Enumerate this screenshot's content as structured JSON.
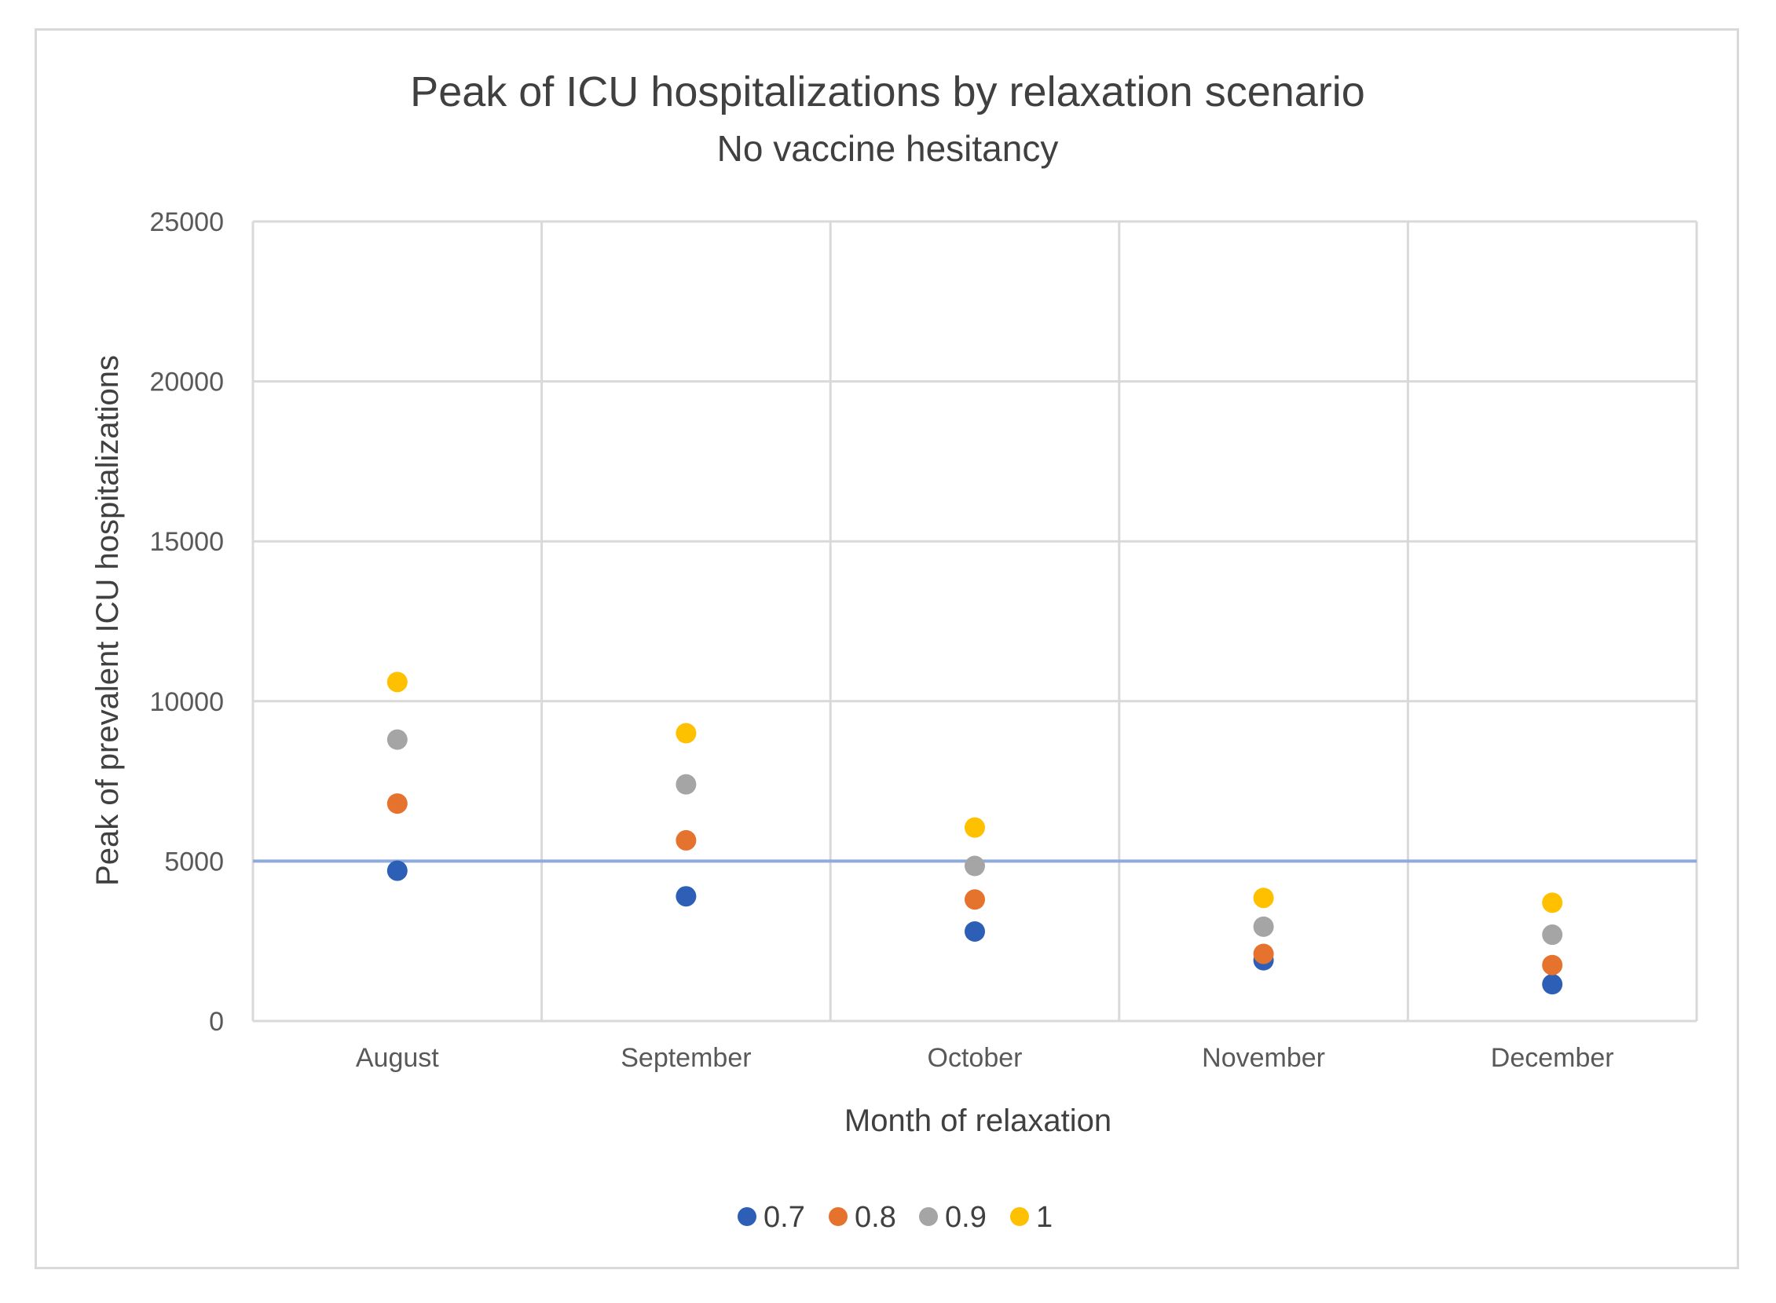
{
  "chart_data": {
    "type": "scatter",
    "title": "Peak of ICU hospitalizations by relaxation scenario",
    "subtitle": "No vaccine hesitancy",
    "xlabel": "Month of relaxation",
    "ylabel": "Peak of prevalent ICU hospitalizations",
    "categories": [
      "August",
      "September",
      "October",
      "November",
      "December"
    ],
    "ylim": [
      0,
      25000
    ],
    "yticks": [
      "0",
      "5000",
      "10000",
      "15000",
      "20000",
      "25000"
    ],
    "grid": true,
    "legend_position": "bottom",
    "reference_line": {
      "y": 5000,
      "color": "#8faadc"
    },
    "series": [
      {
        "name": "0.7",
        "color": "#2e5fb7",
        "values": [
          4700,
          3900,
          2800,
          1900,
          1150
        ]
      },
      {
        "name": "0.8",
        "color": "#e5732d",
        "values": [
          6800,
          5650,
          3800,
          2100,
          1750
        ]
      },
      {
        "name": "0.9",
        "color": "#a5a5a5",
        "values": [
          8800,
          7400,
          4850,
          2950,
          2700
        ]
      },
      {
        "name": "1",
        "color": "#ffc000",
        "values": [
          10600,
          9000,
          6050,
          3850,
          3700
        ]
      }
    ]
  }
}
